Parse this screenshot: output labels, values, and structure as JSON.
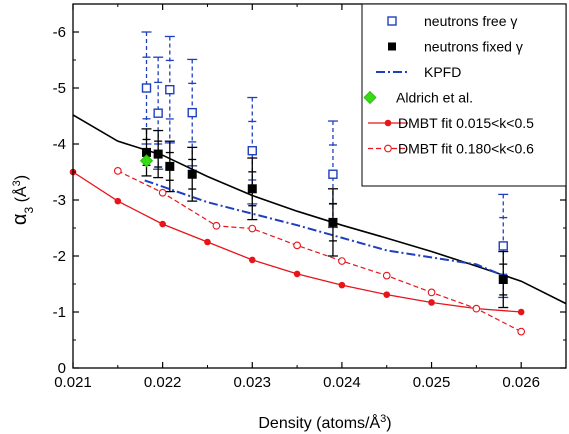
{
  "chart_data": {
    "type": "line",
    "xlabel": "Density (atoms/Å",
    "xlabel_sup": "3",
    "xlabel_end": ")",
    "ylabel": "α",
    "ylabel_sub": "3",
    "ylabel_unit": "(Å",
    "ylabel_unit_sup": "3",
    "ylabel_end": ")",
    "xlim": [
      0.021,
      0.0265
    ],
    "ylim": [
      0,
      -6.5
    ],
    "x_ticks": [
      "0.021",
      "0.022",
      "0.023",
      "0.024",
      "0.025",
      "0.026"
    ],
    "y_ticks": [
      "0",
      "-1",
      "-2",
      "-3",
      "-4",
      "-5",
      "-6"
    ],
    "legend_position": "top-right",
    "series": [
      {
        "name": "neutrons free γ",
        "style": "open-square-dashed-errorbars",
        "color": "#1f3fbf",
        "points": [
          {
            "x": 0.02182,
            "y": -5.0,
            "err": 1.0
          },
          {
            "x": 0.02195,
            "y": -4.55,
            "err": 1.0
          },
          {
            "x": 0.02208,
            "y": -4.97,
            "err": 0.95
          },
          {
            "x": 0.02233,
            "y": -4.56,
            "err": 0.95
          },
          {
            "x": 0.023,
            "y": -3.88,
            "err": 0.95
          },
          {
            "x": 0.0239,
            "y": -3.46,
            "err": 0.95
          },
          {
            "x": 0.0258,
            "y": -2.18,
            "err": 0.92
          }
        ]
      },
      {
        "name": "neutrons fixed γ",
        "style": "filled-square-errorbars",
        "color": "#000000",
        "points": [
          {
            "x": 0.02182,
            "y": -3.85,
            "err": 0.42
          },
          {
            "x": 0.02195,
            "y": -3.82,
            "err": 0.42
          },
          {
            "x": 0.02208,
            "y": -3.6,
            "err": 0.45
          },
          {
            "x": 0.02233,
            "y": -3.46,
            "err": 0.48
          },
          {
            "x": 0.023,
            "y": -3.2,
            "err": 0.55
          },
          {
            "x": 0.0239,
            "y": -2.6,
            "err": 0.6
          },
          {
            "x": 0.0258,
            "y": -1.58,
            "err": 0.5
          }
        ]
      },
      {
        "name": "KPFD",
        "style": "dash-dot-line",
        "color": "#1f3fbf",
        "points": [
          {
            "x": 0.0218,
            "y": -3.35
          },
          {
            "x": 0.0225,
            "y": -2.96
          },
          {
            "x": 0.0235,
            "y": -2.55
          },
          {
            "x": 0.0245,
            "y": -2.1
          },
          {
            "x": 0.0255,
            "y": -1.85
          },
          {
            "x": 0.0258,
            "y": -1.65
          }
        ]
      },
      {
        "name": "Aldrich et al.",
        "style": "green-diamond",
        "color": "#33dd11",
        "points": [
          {
            "x": 0.02182,
            "y": -3.7
          }
        ]
      },
      {
        "name": "DMBT fit 0.015<k<0.5",
        "style": "filled-circle-solid",
        "color": "#e8141a",
        "points": [
          {
            "x": 0.021,
            "y": -3.5
          },
          {
            "x": 0.0215,
            "y": -2.98
          },
          {
            "x": 0.022,
            "y": -2.57
          },
          {
            "x": 0.0225,
            "y": -2.25
          },
          {
            "x": 0.023,
            "y": -1.93
          },
          {
            "x": 0.0235,
            "y": -1.68
          },
          {
            "x": 0.024,
            "y": -1.48
          },
          {
            "x": 0.0245,
            "y": -1.31
          },
          {
            "x": 0.025,
            "y": -1.17
          },
          {
            "x": 0.0255,
            "y": -1.06
          },
          {
            "x": 0.026,
            "y": -1.0
          }
        ]
      },
      {
        "name": "DMBT fit 0.180<k<0.6",
        "style": "open-circle-dashed",
        "color": "#e8141a",
        "points": [
          {
            "x": 0.0215,
            "y": -3.52
          },
          {
            "x": 0.022,
            "y": -3.13
          },
          {
            "x": 0.0226,
            "y": -2.54
          },
          {
            "x": 0.023,
            "y": -2.49
          },
          {
            "x": 0.0235,
            "y": -2.19
          },
          {
            "x": 0.024,
            "y": -1.91
          },
          {
            "x": 0.0245,
            "y": -1.65
          },
          {
            "x": 0.025,
            "y": -1.35
          },
          {
            "x": 0.0255,
            "y": -1.06
          },
          {
            "x": 0.026,
            "y": -0.65
          }
        ]
      }
    ],
    "extra_curves": [
      {
        "style": "solid-black-line",
        "color": "#000000",
        "points": [
          {
            "x": 0.021,
            "y": -4.52
          },
          {
            "x": 0.0215,
            "y": -4.05
          },
          {
            "x": 0.022,
            "y": -3.8
          },
          {
            "x": 0.0225,
            "y": -3.42
          },
          {
            "x": 0.023,
            "y": -3.08
          },
          {
            "x": 0.0235,
            "y": -2.8
          },
          {
            "x": 0.024,
            "y": -2.55
          },
          {
            "x": 0.0245,
            "y": -2.32
          },
          {
            "x": 0.025,
            "y": -2.08
          },
          {
            "x": 0.0255,
            "y": -1.82
          },
          {
            "x": 0.026,
            "y": -1.55
          },
          {
            "x": 0.0265,
            "y": -1.15
          }
        ]
      }
    ]
  }
}
